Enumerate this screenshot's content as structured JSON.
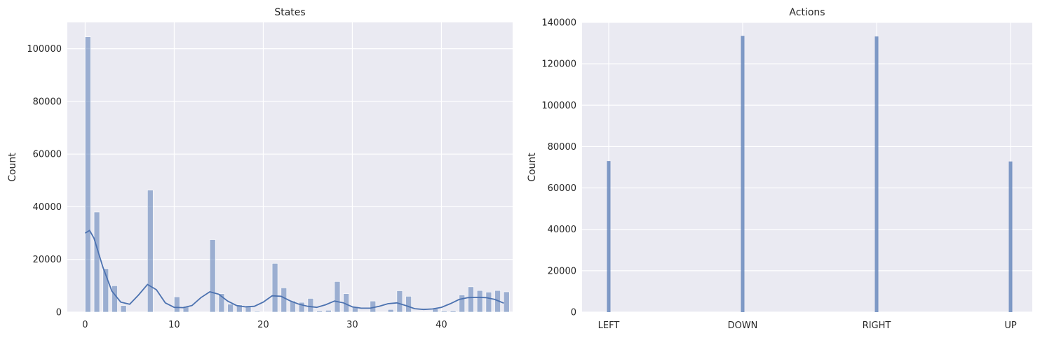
{
  "colors": {
    "bar": "#4c72b0",
    "panel": "#eaeaf2",
    "grid": "#ffffff",
    "kde": "#4c72b0"
  },
  "chart_data": [
    {
      "type": "bar",
      "title": "States",
      "xlabel": "",
      "ylabel": "Count",
      "xlim": [
        -2,
        48
      ],
      "ylim": [
        0,
        110000
      ],
      "xticks": [
        0,
        10,
        20,
        30,
        40
      ],
      "yticks": [
        0,
        20000,
        40000,
        60000,
        80000,
        100000
      ],
      "grid": true,
      "bins": [
        {
          "x": 0,
          "y": 104500
        },
        {
          "x": 1,
          "y": 38000
        },
        {
          "x": 2,
          "y": 16500
        },
        {
          "x": 3,
          "y": 10000
        },
        {
          "x": 4,
          "y": 2500
        },
        {
          "x": 7,
          "y": 46300
        },
        {
          "x": 10,
          "y": 5800
        },
        {
          "x": 11,
          "y": 2200
        },
        {
          "x": 14,
          "y": 27500
        },
        {
          "x": 15,
          "y": 7000
        },
        {
          "x": 16,
          "y": 3000
        },
        {
          "x": 17,
          "y": 2700
        },
        {
          "x": 18,
          "y": 2400
        },
        {
          "x": 19,
          "y": 300
        },
        {
          "x": 21,
          "y": 18500
        },
        {
          "x": 22,
          "y": 9200
        },
        {
          "x": 23,
          "y": 4200
        },
        {
          "x": 24,
          "y": 3700
        },
        {
          "x": 25,
          "y": 5200
        },
        {
          "x": 26,
          "y": 500
        },
        {
          "x": 27,
          "y": 700
        },
        {
          "x": 28,
          "y": 11600
        },
        {
          "x": 29,
          "y": 7000
        },
        {
          "x": 30,
          "y": 1800
        },
        {
          "x": 32,
          "y": 4200
        },
        {
          "x": 34,
          "y": 1000
        },
        {
          "x": 35,
          "y": 8100
        },
        {
          "x": 36,
          "y": 6000
        },
        {
          "x": 39,
          "y": 1300
        },
        {
          "x": 40,
          "y": 400
        },
        {
          "x": 41,
          "y": 500
        },
        {
          "x": 42,
          "y": 6500
        },
        {
          "x": 43,
          "y": 9600
        },
        {
          "x": 44,
          "y": 8200
        },
        {
          "x": 45,
          "y": 7600
        },
        {
          "x": 46,
          "y": 8200
        },
        {
          "x": 47,
          "y": 7700
        }
      ],
      "kde": {
        "x": [
          0,
          0.5,
          1,
          2,
          3,
          4,
          5,
          6,
          7,
          8,
          9,
          10,
          11,
          12,
          13,
          14,
          15,
          16,
          17,
          18,
          19,
          20,
          21,
          22,
          23,
          24,
          25,
          26,
          27,
          28,
          29,
          30,
          31,
          32,
          33,
          34,
          35,
          36,
          37,
          38,
          39,
          40,
          41,
          42,
          43,
          44,
          45,
          46,
          47
        ],
        "y": [
          30000,
          31000,
          28000,
          17000,
          8000,
          3800,
          3000,
          6500,
          10500,
          8500,
          3500,
          1800,
          1700,
          2500,
          5500,
          7700,
          6800,
          4200,
          2500,
          2000,
          2200,
          3800,
          6200,
          6000,
          4300,
          3000,
          2200,
          1800,
          2800,
          4200,
          3500,
          2000,
          1500,
          1500,
          2200,
          3200,
          3500,
          2500,
          1300,
          1000,
          1200,
          1800,
          3200,
          4800,
          5500,
          5600,
          5500,
          4800,
          3400
        ]
      }
    },
    {
      "type": "bar",
      "title": "Actions",
      "xlabel": "",
      "ylabel": "Count",
      "categories": [
        "LEFT",
        "DOWN",
        "RIGHT",
        "UP"
      ],
      "values": [
        73000,
        133500,
        133200,
        72800
      ],
      "ylim": [
        0,
        140000
      ],
      "yticks": [
        0,
        20000,
        40000,
        60000,
        80000,
        100000,
        120000,
        140000
      ],
      "grid": true
    }
  ]
}
